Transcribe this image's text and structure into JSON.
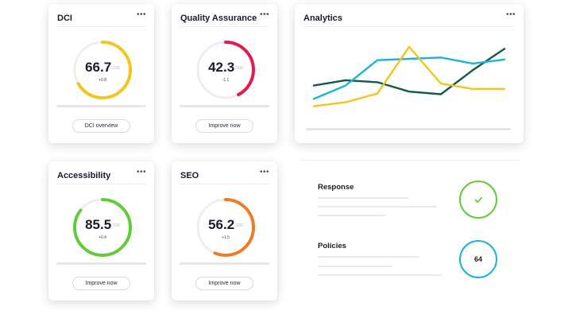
{
  "cards": {
    "dci": {
      "title": "DCI",
      "score": "66.7",
      "of": "/100",
      "delta": "+0.8",
      "level": 0.667,
      "color": "#f2c51f",
      "button": "DCI overview"
    },
    "qa": {
      "title": "Quality Assurance",
      "score": "42.3",
      "of": "/100",
      "delta": "-1.1",
      "level": 0.423,
      "color": "#e5194b",
      "button": "Improve now"
    },
    "accessibility": {
      "title": "Accessibility",
      "score": "85.5",
      "of": "/100",
      "delta": "+0.4",
      "level": 0.855,
      "color": "#63cb3a",
      "button": "Improve now"
    },
    "seo": {
      "title": "SEO",
      "score": "56.2",
      "of": "/100",
      "delta": "+1.5",
      "level": 0.562,
      "color": "#ee7c24",
      "button": "Improve now"
    }
  },
  "more_icon": "ellipsis-icon",
  "more_glyph": "•••",
  "analytics": {
    "title": "Analytics"
  },
  "chart_data": {
    "type": "line",
    "title": "Analytics",
    "x": [
      0,
      1,
      2,
      3,
      4,
      5,
      6
    ],
    "ylim": [
      0,
      100
    ],
    "series": [
      {
        "color": "#0f5a4e",
        "values": [
          35,
          43,
          40,
          26,
          22,
          58,
          90
        ]
      },
      {
        "color": "#1fb2d9",
        "values": [
          15,
          35,
          73,
          75,
          77,
          68,
          74
        ]
      },
      {
        "color": "#f2c51f",
        "values": [
          4,
          10,
          23,
          93,
          38,
          30,
          30
        ]
      }
    ],
    "grid": false,
    "legend": "none"
  },
  "response": {
    "title": "Response",
    "status_icon": "checkmark-icon",
    "status_color": "#63cb3a"
  },
  "policies": {
    "title": "Policies",
    "value": "64",
    "ring_color": "#1fb2d9"
  }
}
